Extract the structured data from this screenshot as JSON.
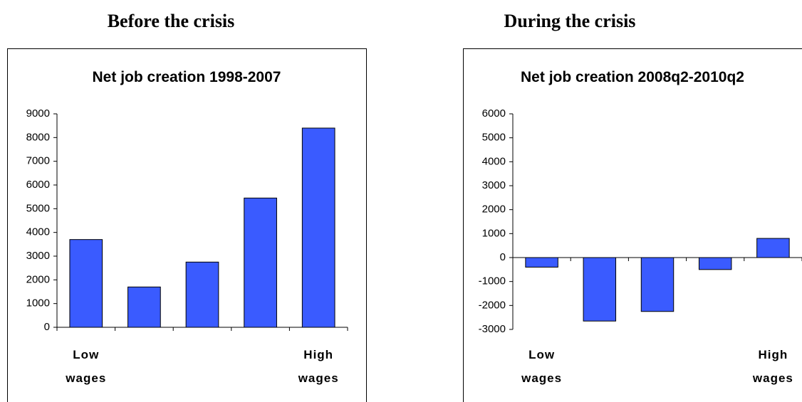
{
  "headings": [
    "Before the crisis",
    "During the crisis"
  ],
  "chart_data": [
    {
      "type": "bar",
      "title": "Net job creation 1998-2007",
      "categories": [
        "Low wages",
        null,
        null,
        null,
        "High wages"
      ],
      "values": [
        3700,
        1700,
        2750,
        5450,
        8400
      ],
      "color": "#3a5bff",
      "ylim": [
        0,
        9000
      ],
      "yticks": [
        0,
        1000,
        2000,
        3000,
        4000,
        5000,
        6000,
        7000,
        8000,
        9000
      ],
      "grid": false
    },
    {
      "type": "bar",
      "title": "Net job creation 2008q2-2010q2",
      "categories": [
        "Low wages",
        null,
        null,
        null,
        "High wages"
      ],
      "values": [
        -400,
        -2650,
        -2250,
        -500,
        800
      ],
      "color": "#3a5bff",
      "ylim": [
        -3000,
        6000
      ],
      "yticks": [
        -3000,
        -2000,
        -1000,
        0,
        1000,
        2000,
        3000,
        4000,
        5000,
        6000
      ],
      "grid": false
    }
  ]
}
